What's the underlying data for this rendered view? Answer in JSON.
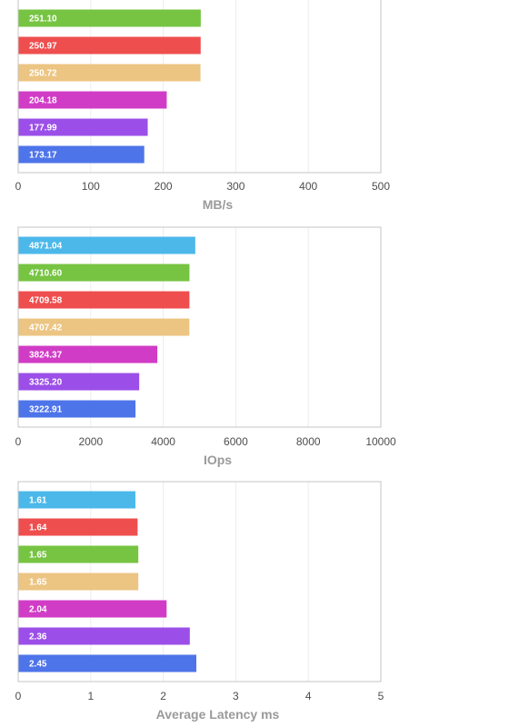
{
  "chart_data": [
    {
      "type": "bar",
      "orientation": "horizontal",
      "xlabel": "MB/s",
      "xlim": [
        0,
        500
      ],
      "xticks": [
        0,
        100,
        200,
        300,
        400,
        500
      ],
      "grid": true,
      "bars": [
        {
          "value": 251.1,
          "label": "251.10",
          "color": "#76c442"
        },
        {
          "value": 250.97,
          "label": "250.97",
          "color": "#ef4e4e"
        },
        {
          "value": 250.72,
          "label": "250.72",
          "color": "#ecc583"
        },
        {
          "value": 204.18,
          "label": "204.18",
          "color": "#d13cc6"
        },
        {
          "value": 177.99,
          "label": "177.99",
          "color": "#9b4fe8"
        },
        {
          "value": 173.17,
          "label": "173.17",
          "color": "#4e74ea"
        }
      ]
    },
    {
      "type": "bar",
      "orientation": "horizontal",
      "xlabel": "IOps",
      "xlim": [
        0,
        10000
      ],
      "xticks": [
        0,
        2000,
        4000,
        6000,
        8000,
        10000
      ],
      "grid": true,
      "bars": [
        {
          "value": 4871.04,
          "label": "4871.04",
          "color": "#4cb8ea"
        },
        {
          "value": 4710.6,
          "label": "4710.60",
          "color": "#76c442"
        },
        {
          "value": 4709.58,
          "label": "4709.58",
          "color": "#ef4e4e"
        },
        {
          "value": 4707.42,
          "label": "4707.42",
          "color": "#ecc583"
        },
        {
          "value": 3824.37,
          "label": "3824.37",
          "color": "#d13cc6"
        },
        {
          "value": 3325.2,
          "label": "3325.20",
          "color": "#9b4fe8"
        },
        {
          "value": 3222.91,
          "label": "3222.91",
          "color": "#4e74ea"
        }
      ]
    },
    {
      "type": "bar",
      "orientation": "horizontal",
      "xlabel": "Average Latency ms",
      "xlim": [
        0,
        5
      ],
      "xticks": [
        0,
        1,
        2,
        3,
        4,
        5
      ],
      "grid": true,
      "bars": [
        {
          "value": 1.61,
          "label": "1.61",
          "color": "#4cb8ea"
        },
        {
          "value": 1.64,
          "label": "1.64",
          "color": "#ef4e4e"
        },
        {
          "value": 1.65,
          "label": "1.65",
          "color": "#76c442"
        },
        {
          "value": 1.65,
          "label": "1.65",
          "color": "#ecc583"
        },
        {
          "value": 2.04,
          "label": "2.04",
          "color": "#d13cc6"
        },
        {
          "value": 2.36,
          "label": "2.36",
          "color": "#9b4fe8"
        },
        {
          "value": 2.45,
          "label": "2.45",
          "color": "#4e74ea"
        }
      ]
    }
  ]
}
